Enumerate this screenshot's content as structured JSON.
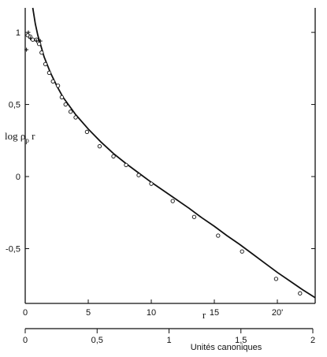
{
  "chart_data": {
    "type": "scatter",
    "title": "",
    "ylabel": {
      "base": "log ρ",
      "subscript": "p",
      "suffix": " r"
    },
    "xlabel": "r",
    "secondary_xlabel": "Unités canoniques",
    "xlim": [
      0,
      23
    ],
    "ylim": [
      -0.88,
      1.17
    ],
    "secondary_xlim": [
      0,
      2.0
    ],
    "grid": false,
    "x_ticks": [
      {
        "value": 0,
        "label": "0"
      },
      {
        "value": 5,
        "label": "5"
      },
      {
        "value": 10,
        "label": "10"
      },
      {
        "value": 15,
        "label": "15"
      },
      {
        "value": 20,
        "label": "20'"
      }
    ],
    "y_ticks": [
      {
        "value": 1,
        "label": "1"
      },
      {
        "value": 0.5,
        "label": "0,5"
      },
      {
        "value": 0,
        "label": "0"
      },
      {
        "value": -0.5,
        "label": "-0,5"
      }
    ],
    "secondary_ticks": [
      {
        "value": 0,
        "label": "0"
      },
      {
        "value": 0.5,
        "label": "0,5"
      },
      {
        "value": 1,
        "label": "1"
      },
      {
        "value": 1.5,
        "label": "1,5"
      },
      {
        "value": 2,
        "label": "2"
      }
    ],
    "series": [
      {
        "kind": "points-open",
        "color": "#111111",
        "points": [
          [
            0.2,
            0.98
          ],
          [
            0.4,
            0.97
          ],
          [
            0.6,
            0.95
          ],
          [
            0.9,
            0.95
          ],
          [
            1.1,
            0.92
          ],
          [
            1.3,
            0.86
          ],
          [
            1.6,
            0.78
          ],
          [
            1.9,
            0.72
          ],
          [
            2.2,
            0.66
          ],
          [
            2.6,
            0.63
          ],
          [
            2.9,
            0.55
          ],
          [
            3.2,
            0.5
          ],
          [
            3.6,
            0.45
          ],
          [
            4.0,
            0.41
          ],
          [
            4.9,
            0.31
          ],
          [
            5.9,
            0.21
          ],
          [
            7.0,
            0.14
          ],
          [
            8.0,
            0.08
          ],
          [
            9.0,
            0.01
          ],
          [
            10.0,
            -0.05
          ],
          [
            11.7,
            -0.17
          ],
          [
            13.4,
            -0.28
          ],
          [
            15.3,
            -0.41
          ],
          [
            17.2,
            -0.52
          ],
          [
            19.9,
            -0.71
          ],
          [
            21.8,
            -0.81
          ]
        ]
      },
      {
        "kind": "points-cross",
        "color": "#111111",
        "points": [
          [
            0.1,
            0.88
          ],
          [
            0.25,
            1.0
          ],
          [
            0.4,
            0.96
          ],
          [
            0.9,
            0.94
          ],
          [
            1.2,
            0.94
          ]
        ]
      },
      {
        "kind": "curve",
        "color": "#111111",
        "points": [
          [
            0.6,
            1.17
          ],
          [
            0.8,
            1.06
          ],
          [
            1.0,
            0.98
          ],
          [
            1.5,
            0.83
          ],
          [
            2.0,
            0.72
          ],
          [
            2.5,
            0.63
          ],
          [
            3.0,
            0.55
          ],
          [
            3.5,
            0.49
          ],
          [
            4.0,
            0.43
          ],
          [
            5.0,
            0.33
          ],
          [
            6.0,
            0.24
          ],
          [
            7.0,
            0.16
          ],
          [
            8.0,
            0.09
          ],
          [
            9.0,
            0.025
          ],
          [
            10.0,
            -0.04
          ],
          [
            11.0,
            -0.1
          ],
          [
            12.0,
            -0.16
          ],
          [
            13.0,
            -0.22
          ],
          [
            14.0,
            -0.285
          ],
          [
            15.0,
            -0.345
          ],
          [
            16.0,
            -0.41
          ],
          [
            17.0,
            -0.47
          ],
          [
            18.0,
            -0.535
          ],
          [
            19.0,
            -0.6
          ],
          [
            20.0,
            -0.665
          ],
          [
            21.0,
            -0.725
          ],
          [
            22.0,
            -0.785
          ],
          [
            23.0,
            -0.84
          ]
        ]
      }
    ]
  }
}
